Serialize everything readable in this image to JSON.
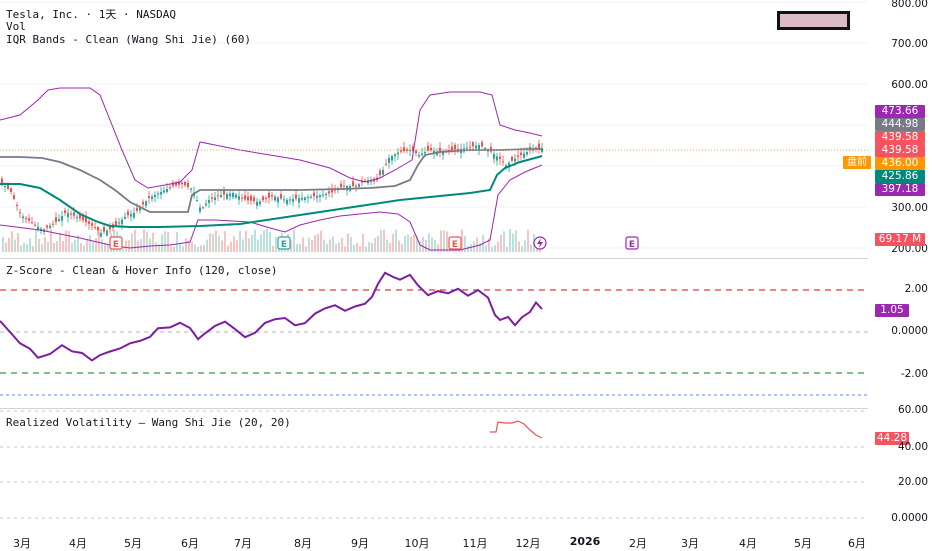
{
  "header": {
    "symbol_line": "Tesla, Inc. · 1天 · NASDAQ",
    "vol_label": "Vol",
    "iqr_label": "IQR Bands - Clean (Wang Shi Jie) (60)"
  },
  "zscore": {
    "label": "Z-Score - Clean & Hover Info (120, close)",
    "axis": [
      "2.00",
      "0.0000",
      "-2.00"
    ],
    "current": "1.05"
  },
  "realized_vol": {
    "label": "Realized Volatility — Wang Shi Jie (20, 20)",
    "axis": [
      "60.00",
      "40.00",
      "20.00",
      "0.0000"
    ],
    "current": "44.28"
  },
  "price_axis": [
    "800.00",
    "700.00",
    "600.00",
    "300.00",
    "200.00"
  ],
  "price_tags": [
    {
      "text": "473.66",
      "color": "#9c27b0"
    },
    {
      "text": "444.98",
      "color": "#787b86"
    },
    {
      "text": "439.58",
      "color": "#f7525f"
    },
    {
      "text": "439.58",
      "color": "#f7525f"
    },
    {
      "text": "436.00",
      "color": "#ff9800"
    },
    {
      "text": "425.86",
      "color": "#00897b"
    },
    {
      "text": "397.18",
      "color": "#9c27b0"
    },
    {
      "text": "69.17 M",
      "color": "#f7525f"
    }
  ],
  "premarket_label": "盘前",
  "earnings_marker": "E",
  "x_axis": [
    "3月",
    "4月",
    "5月",
    "6月",
    "7月",
    "8月",
    "9月",
    "10月",
    "11月",
    "12月",
    "2026",
    "2月",
    "3月",
    "4月",
    "5月",
    "6月"
  ],
  "colors": {
    "up": "#26a69a",
    "down": "#ef5350",
    "iqr_band": "#9c27b0",
    "median": "#787b86",
    "teal_line": "#00897b",
    "zscore": "#7b1fa2",
    "rv": "#ef5350"
  },
  "chart_data": [
    {
      "type": "line",
      "title": "Tesla, Inc. · 1天 · NASDAQ",
      "x": [
        "Feb",
        "Mar",
        "Apr",
        "May",
        "Jun",
        "Jul",
        "Aug",
        "Sep",
        "Oct",
        "Nov",
        "Dec"
      ],
      "series": [
        {
          "values": [
            330,
            275,
            255,
            270,
            330,
            310,
            325,
            340,
            440,
            420,
            440
          ]
        }
      ],
      "ylabel": "",
      "ylim": [
        200,
        800
      ],
      "tick_labels": [
        "200.00",
        "300.00",
        "600.00",
        "700.00",
        "800.00"
      ],
      "grid": true
    },
    {
      "type": "line",
      "title": "Z-Score - Clean & Hover Info (120, close)",
      "x": [
        "Feb",
        "Mar",
        "Apr",
        "May",
        "Jun",
        "Jul",
        "Aug",
        "Sep",
        "Oct",
        "Nov",
        "Dec"
      ],
      "series": [
        {
          "values": [
            -0.5,
            -1.5,
            -1.6,
            -0.8,
            0.2,
            0.0,
            0.6,
            1.3,
            2.9,
            1.9,
            1.05
          ]
        }
      ],
      "ylim": [
        -3,
        3.5
      ],
      "tick_labels": [
        "-2.00",
        "0.0000",
        "2.00"
      ],
      "grid": true
    },
    {
      "type": "line",
      "title": "Realized Volatility — Wang Shi Jie (20, 20)",
      "x": [
        "Nov",
        "Nov",
        "Nov",
        "Nov",
        "Dec",
        "Dec"
      ],
      "series": [
        {
          "values": [
            51,
            52,
            53,
            53,
            50,
            44.28
          ]
        }
      ],
      "ylim": [
        0,
        60
      ],
      "tick_labels": [
        "0.0000",
        "20.00",
        "40.00",
        "60.00"
      ],
      "grid": true
    }
  ]
}
